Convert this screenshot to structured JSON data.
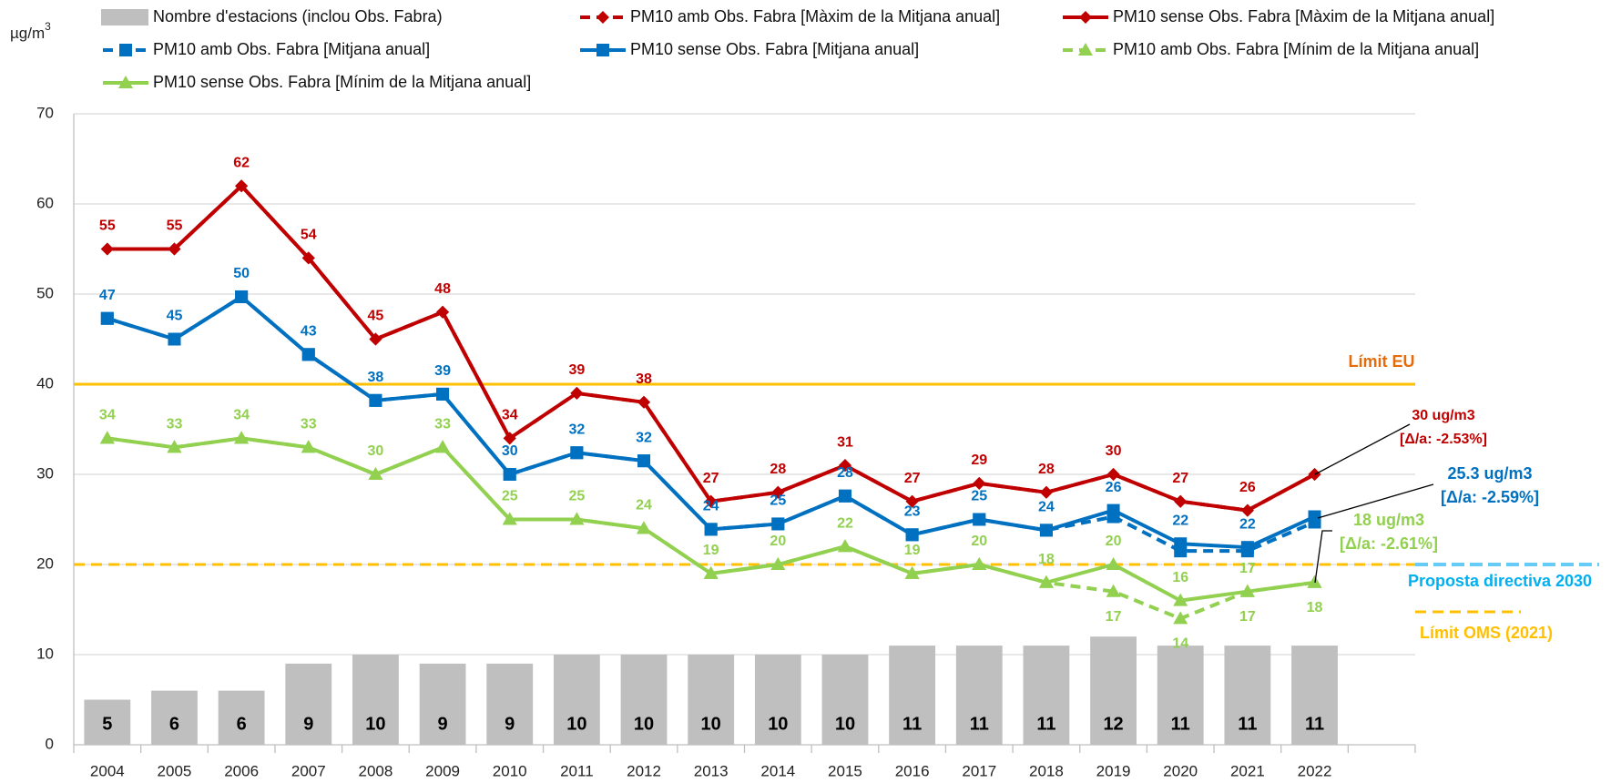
{
  "chart_data": {
    "type": "combo",
    "ylabel": {
      "text": "µg/m",
      "superscript": "3"
    },
    "categories": [
      "2004",
      "2005",
      "2006",
      "2007",
      "2008",
      "2009",
      "2010",
      "2011",
      "2012",
      "2013",
      "2014",
      "2015",
      "2016",
      "2017",
      "2018",
      "2019",
      "2020",
      "2021",
      "2022"
    ],
    "ylim": [
      0,
      70
    ],
    "yticks": [
      0,
      10,
      20,
      30,
      40,
      50,
      60,
      70
    ],
    "grid": true,
    "series": [
      {
        "name": "Nombre d'estacions (inclou Obs. Fabra)",
        "type": "bar",
        "color": "#bfbfbf",
        "values": [
          5,
          6,
          6,
          9,
          10,
          9,
          9,
          10,
          10,
          10,
          10,
          10,
          11,
          11,
          11,
          12,
          11,
          11,
          11
        ]
      },
      {
        "name": "PM10 amb Obs. Fabra [Màxim de la Mitjana anual]",
        "type": "line",
        "color": "#c00000",
        "dashed": true,
        "marker": "diamond",
        "values": [
          55,
          55,
          62,
          54,
          45,
          48,
          34,
          39,
          38,
          27,
          28,
          31,
          27,
          29,
          28,
          30,
          27,
          26,
          30
        ]
      },
      {
        "name": "PM10 sense Obs. Fabra [Màxim de la Mitjana anual]",
        "type": "line",
        "color": "#c00000",
        "dashed": false,
        "marker": "diamond",
        "label_position": "above",
        "values": [
          55,
          55,
          62,
          54,
          45,
          48,
          34,
          39,
          38,
          27,
          28,
          31,
          27,
          29,
          28,
          30,
          27,
          26,
          30
        ],
        "value_labels": [
          "55",
          "55",
          "62",
          "54",
          "45",
          "48",
          "34",
          "39",
          "38",
          "27",
          "28",
          "31",
          "27",
          "29",
          "28",
          "30",
          "27",
          "26",
          null
        ]
      },
      {
        "name": "PM10 amb Obs. Fabra [Mitjana anual]",
        "type": "line",
        "color": "#0070c0",
        "dashed": true,
        "marker": "square",
        "values": [
          47.3,
          45,
          49.7,
          43.3,
          38.2,
          38.9,
          30,
          32.4,
          31.5,
          23.9,
          24.5,
          27.6,
          23.3,
          25,
          23.8,
          25.3,
          21.5,
          21.5,
          24.7
        ]
      },
      {
        "name": "PM10 sense Obs. Fabra [Mitjana anual]",
        "type": "line",
        "color": "#0070c0",
        "dashed": false,
        "marker": "square",
        "label_position": "above",
        "values": [
          47.3,
          45,
          49.7,
          43.3,
          38.2,
          38.9,
          30,
          32.4,
          31.5,
          23.9,
          24.5,
          27.6,
          23.3,
          25,
          23.8,
          26,
          22.3,
          21.9,
          25.3
        ],
        "value_labels": [
          "47",
          "45",
          "50",
          "43",
          "38",
          "39",
          "30",
          "32",
          "32",
          "24",
          "25",
          "28",
          "23",
          "25",
          "24",
          "26",
          "22",
          "22",
          null
        ]
      },
      {
        "name": "PM10 amb Obs. Fabra [Mínim de la Mitjana anual]",
        "type": "line",
        "color": "#92d050",
        "dashed": true,
        "marker": "triangle",
        "label_position": "below",
        "values": [
          34,
          33,
          34,
          33,
          30,
          33,
          25,
          25,
          24,
          19,
          20,
          22,
          19,
          20,
          18,
          17,
          14,
          17,
          18
        ],
        "value_labels": [
          null,
          null,
          null,
          null,
          null,
          null,
          null,
          null,
          null,
          null,
          null,
          null,
          null,
          null,
          null,
          "17",
          "14",
          "17",
          "18"
        ]
      },
      {
        "name": "PM10 sense Obs. Fabra [Mínim de la Mitjana anual]",
        "type": "line",
        "color": "#92d050",
        "dashed": false,
        "marker": "triangle",
        "label_position": "above",
        "values": [
          34,
          33,
          34,
          33,
          30,
          33,
          25,
          25,
          24,
          19,
          20,
          22,
          19,
          20,
          18,
          20,
          16,
          17,
          18
        ],
        "value_labels": [
          "34",
          "33",
          "34",
          "33",
          "30",
          "33",
          "25",
          "25",
          "24",
          "19",
          "20",
          "22",
          "19",
          "20",
          "18",
          "20",
          "16",
          "17",
          null
        ]
      }
    ],
    "reference_lines": [
      {
        "label": "Límit EU",
        "value": 40,
        "color": "#ffc000",
        "label_color": "#e46c0a",
        "dashed": false
      },
      {
        "label": "Proposta directiva 2030",
        "value": 20,
        "color": "#66ccf5",
        "label_color": "#00b0f0",
        "dashed": true
      },
      {
        "label": "Límit OMS (2021)",
        "value": 20,
        "color": "#ffc000",
        "label_color": "#ffc000",
        "dashed": true
      }
    ],
    "annotations": [
      {
        "lines": [
          "30 ug/m3",
          "[Δ/a: -2.53%]"
        ],
        "color": "#c00000"
      },
      {
        "lines": [
          "25.3 ug/m3",
          "[Δ/a: -2.59%]"
        ],
        "color": "#0070c0"
      },
      {
        "lines": [
          "18 ug/m3",
          "[Δ/a: -2.61%]"
        ],
        "color": "#92d050"
      }
    ]
  }
}
